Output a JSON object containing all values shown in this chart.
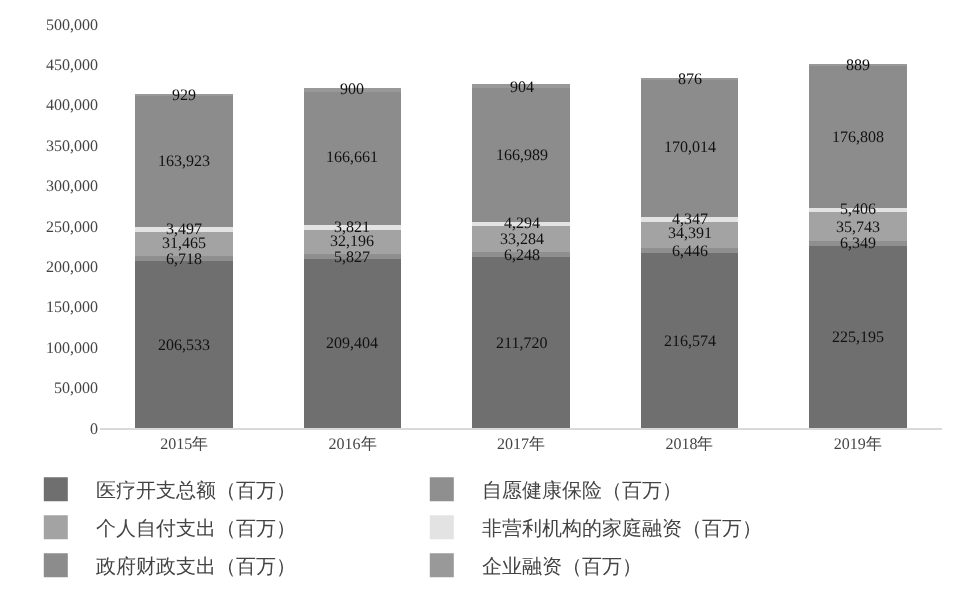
{
  "chart_data": {
    "type": "bar",
    "stacked": true,
    "grid": false,
    "legend": "bottom",
    "categories": [
      "2015年",
      "2016年",
      "2017年",
      "2018年",
      "2019年"
    ],
    "ylim": [
      0,
      500000
    ],
    "yticks": [
      {
        "value": 0,
        "label": "0"
      },
      {
        "value": 50000,
        "label": "50,000"
      },
      {
        "value": 100000,
        "label": "100,000"
      },
      {
        "value": 150000,
        "label": "150,000"
      },
      {
        "value": 200000,
        "label": "200,000"
      },
      {
        "value": 250000,
        "label": "250,000"
      },
      {
        "value": 300000,
        "label": "300,000"
      },
      {
        "value": 350000,
        "label": "350,000"
      },
      {
        "value": 400000,
        "label": "400,000"
      },
      {
        "value": 450000,
        "label": "450,000"
      },
      {
        "value": 500000,
        "label": "500,000"
      }
    ],
    "series": [
      {
        "name": "医疗开支总额（百万）",
        "color": "#6f6f6f",
        "values": [
          206533,
          209404,
          211720,
          216574,
          225195
        ],
        "value_labels": [
          "206,533",
          "209,404",
          "211,720",
          "216,574",
          "225,195"
        ]
      },
      {
        "name": "自愿健康保险（百万）",
        "color": "#8f8f8f",
        "values": [
          6718,
          5827,
          6248,
          6446,
          6349
        ],
        "value_labels": [
          "6,718",
          "5,827",
          "6,248",
          "6,446",
          "6,349"
        ]
      },
      {
        "name": "个人自付支出（百万）",
        "color": "#a3a3a3",
        "values": [
          31465,
          32196,
          33284,
          34391,
          35743
        ],
        "value_labels": [
          "31,465",
          "32,196",
          "33,284",
          "34,391",
          "35,743"
        ]
      },
      {
        "name": "非营利机构的家庭融资（百万）",
        "color": "#e3e3e3",
        "values": [
          3497,
          3821,
          4294,
          4347,
          5406
        ],
        "value_labels": [
          "3,497",
          "3,821",
          "4,294",
          "4,347",
          "5,406"
        ]
      },
      {
        "name": "政府财政支出（百万）",
        "color": "#8c8c8c",
        "values": [
          163923,
          166661,
          166989,
          170014,
          176808
        ],
        "value_labels": [
          "163,923",
          "166,661",
          "166,989",
          "170,014",
          "176,808"
        ]
      },
      {
        "name": "企业融资（百万）",
        "color": "#999999",
        "values": [
          929,
          900,
          904,
          876,
          889
        ],
        "value_labels": [
          "929",
          "900",
          "904",
          "876",
          "889"
        ]
      }
    ]
  }
}
